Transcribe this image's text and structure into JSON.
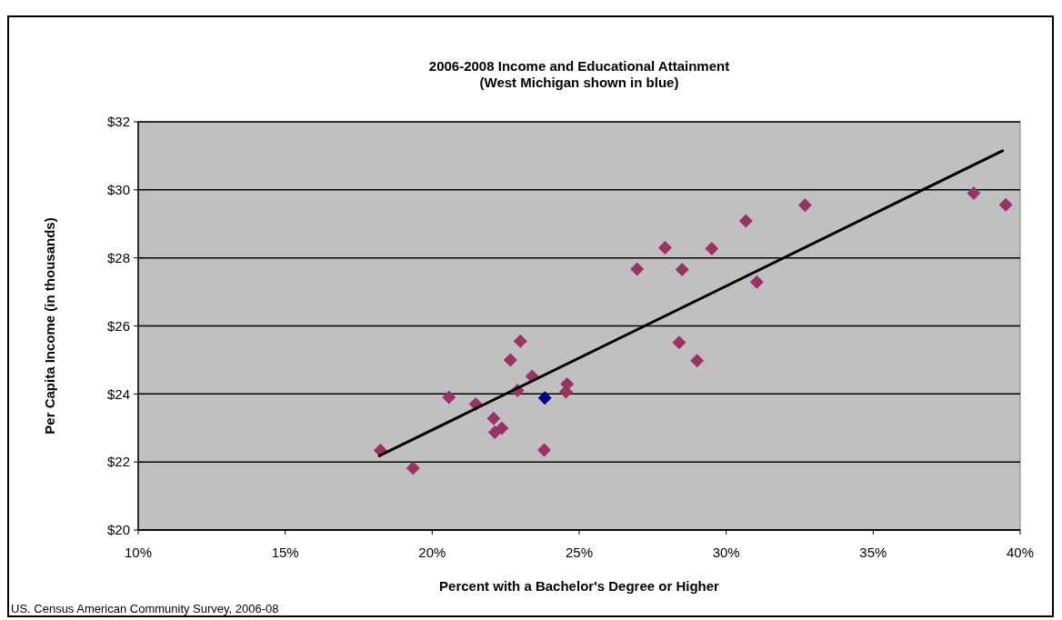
{
  "chart_data": {
    "type": "scatter",
    "title": "2006-2008 Income and Educational Attainment",
    "subtitle": "(West Michigan shown in blue)",
    "xlabel": "Percent with a Bachelor's Degree or Higher",
    "ylabel": "Per Capita Income (in thousands)",
    "xlim": [
      10,
      40
    ],
    "xticks": [
      {
        "value": 10,
        "label": "10%"
      },
      {
        "value": 15,
        "label": "15%"
      },
      {
        "value": 20,
        "label": "20%"
      },
      {
        "value": 25,
        "label": "25%"
      },
      {
        "value": 30,
        "label": "30%"
      },
      {
        "value": 35,
        "label": "35%"
      },
      {
        "value": 40,
        "label": "40%"
      }
    ],
    "ylim": [
      20,
      32
    ],
    "yticks": [
      {
        "value": 20,
        "label": "$20"
      },
      {
        "value": 22,
        "label": "$22"
      },
      {
        "value": 24,
        "label": "$24"
      },
      {
        "value": 26,
        "label": "$26"
      },
      {
        "value": 28,
        "label": "$28"
      },
      {
        "value": 30,
        "label": "$30"
      },
      {
        "value": 32,
        "label": "$32"
      }
    ],
    "grid": "y",
    "series": [
      {
        "type": "scatter",
        "marker": "diamond",
        "x": [
          18.24,
          19.35,
          20.57,
          21.48,
          22.09,
          22.13,
          22.37,
          22.66,
          23.0,
          23.4,
          22.9,
          23.83,
          23.81,
          24.59,
          24.55,
          26.97,
          27.92,
          28.5,
          29.51,
          30.67,
          31.04,
          32.68,
          28.4,
          29.01,
          38.42,
          39.51
        ],
        "values": [
          22.34,
          21.82,
          23.9,
          23.7,
          23.28,
          22.87,
          22.99,
          25.0,
          25.55,
          24.52,
          24.1,
          23.88,
          22.35,
          24.29,
          24.06,
          27.67,
          28.3,
          27.66,
          28.27,
          29.09,
          27.29,
          29.55,
          25.51,
          24.98,
          29.9,
          29.56
        ],
        "colors": [
          "#993366",
          "#993366",
          "#993366",
          "#993366",
          "#993366",
          "#993366",
          "#993366",
          "#993366",
          "#993366",
          "#993366",
          "#993366",
          "#000080",
          "#993366",
          "#993366",
          "#993366",
          "#993366",
          "#993366",
          "#993366",
          "#993366",
          "#993366",
          "#993366",
          "#993366",
          "#993366",
          "#993366",
          "#993366",
          "#993366"
        ]
      },
      {
        "type": "line",
        "color": "#000000",
        "line_style": "solid",
        "x": [
          18.2,
          39.4
        ],
        "values": [
          22.18,
          31.15
        ]
      }
    ],
    "annotations": [
      "US. Census American Community Survey, 2006-08"
    ]
  }
}
